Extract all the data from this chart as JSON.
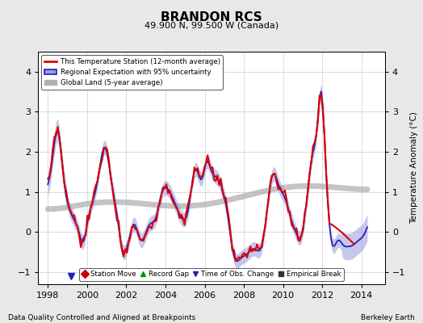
{
  "title": "BRANDON RCS",
  "subtitle": "49.900 N, 99.500 W (Canada)",
  "xlabel_bottom": "Data Quality Controlled and Aligned at Breakpoints",
  "xlabel_right": "Berkeley Earth",
  "ylabel": "Temperature Anomaly (°C)",
  "xlim": [
    1997.5,
    2015.2
  ],
  "ylim": [
    -1.3,
    4.5
  ],
  "yticks": [
    -1,
    0,
    1,
    2,
    3,
    4
  ],
  "xticks": [
    1998,
    2000,
    2002,
    2004,
    2006,
    2008,
    2010,
    2012,
    2014
  ],
  "bg_color": "#e8e8e8",
  "plot_bg_color": "#ffffff",
  "grid_color": "#cccccc",
  "regional_color": "#2222bb",
  "regional_fill_color": "#9999dd",
  "station_color": "#dd0000",
  "global_color": "#b0b0b0",
  "obs_change_marker_color": "#2222bb",
  "record_gap_color": "#009900",
  "station_move_color": "#cc0000",
  "empirical_break_color": "#333333"
}
